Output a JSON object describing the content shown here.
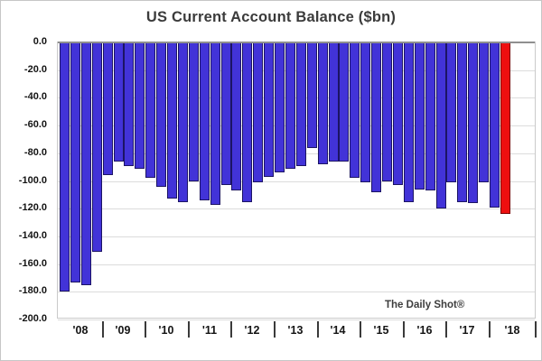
{
  "title": "US Current Account Balance ($bn)",
  "watermark": "The Daily Shot®",
  "colors": {
    "bar_fill": "#4233d8",
    "bar_border": "#1c1464",
    "highlight_fill": "#ee0f0f",
    "highlight_border": "#7a0000",
    "gridline": "#dcdcdc",
    "zero_line": "#8f8f8f",
    "plot_border": "#cacaca",
    "title_color": "#3b3b3b",
    "axis_label_color": "#141414"
  },
  "chart_data": {
    "type": "bar",
    "title": "US Current Account Balance ($bn)",
    "unit": "$bn",
    "ylabel": "",
    "xlabel": "",
    "ylim": [
      -200,
      0
    ],
    "grid": true,
    "legend": "none",
    "y_tick_labels": [
      "0.0",
      "-20.0",
      "-40.0",
      "-60.0",
      "-80.0",
      "-100.0",
      "-120.0",
      "-140.0",
      "-160.0",
      "-180.0",
      "-200.0"
    ],
    "x_year_labels": [
      "'08",
      "'09",
      "'10",
      "'11",
      "'12",
      "'13",
      "'14",
      "'15",
      "'16",
      "'17",
      "'18"
    ],
    "quarters": [
      "2008 Q1",
      "2008 Q2",
      "2008 Q3",
      "2008 Q4",
      "2009 Q1",
      "2009 Q2",
      "2009 Q3",
      "2009 Q4",
      "2010 Q1",
      "2010 Q2",
      "2010 Q3",
      "2010 Q4",
      "2011 Q1",
      "2011 Q2",
      "2011 Q3",
      "2011 Q4",
      "2012 Q1",
      "2012 Q2",
      "2012 Q3",
      "2012 Q4",
      "2013 Q1",
      "2013 Q2",
      "2013 Q3",
      "2013 Q4",
      "2014 Q1",
      "2014 Q2",
      "2014 Q3",
      "2014 Q4",
      "2015 Q1",
      "2015 Q2",
      "2015 Q3",
      "2015 Q4",
      "2016 Q1",
      "2016 Q2",
      "2016 Q3",
      "2016 Q4",
      "2017 Q1",
      "2017 Q2",
      "2017 Q3",
      "2017 Q4",
      "2018 Q1",
      "2018 Q2"
    ],
    "values": [
      -180,
      -173,
      -175,
      -151,
      -96,
      -86,
      -89,
      -91,
      -98,
      -104,
      -113,
      -115,
      -100,
      -114,
      -117,
      -103,
      -107,
      -115,
      -101,
      -97,
      -94,
      -91,
      -89,
      -76,
      -88,
      -86,
      -86,
      -98,
      -101,
      -108,
      -100,
      -103,
      -115,
      -106,
      -107,
      -120,
      -101,
      -115,
      -116,
      -101,
      -119,
      -124
    ],
    "highlight_last_bar": true,
    "highlight_meaning": "latest-quarter-highlighted-red"
  }
}
